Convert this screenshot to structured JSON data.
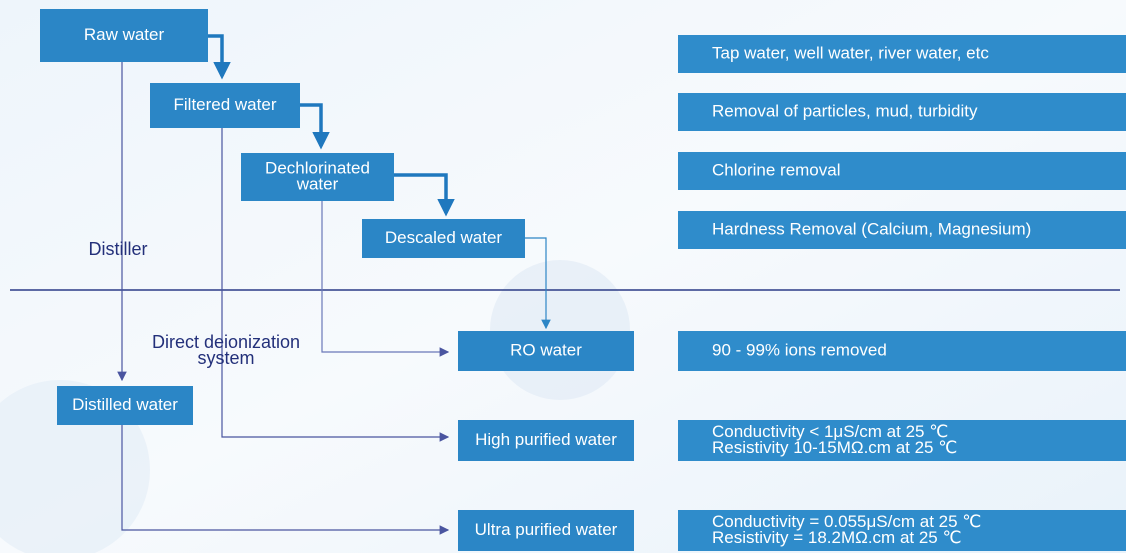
{
  "nodes": [
    {
      "label": [
        "Raw water"
      ]
    },
    {
      "label": [
        "Filtered water"
      ]
    },
    {
      "label": [
        "Dechlorinated",
        "water"
      ]
    },
    {
      "label": [
        "Descaled water"
      ]
    },
    {
      "label": [
        "RO water"
      ]
    },
    {
      "label": [
        "Distilled water"
      ]
    },
    {
      "label": [
        "High purified water"
      ]
    },
    {
      "label": [
        "Ultra purified water"
      ]
    }
  ],
  "descriptions": [
    [
      "Tap water, well water, river water, etc"
    ],
    [
      "Removal of particles, mud, turbidity"
    ],
    [
      "Chlorine removal"
    ],
    [
      "Hardness Removal (Calcium, Magnesium)"
    ],
    [
      "90 - 99% ions removed"
    ],
    [
      "Conductivity < 1μS/cm at 25 ℃",
      "Resistivity 10-15MΩ.cm at 25 ℃"
    ],
    [
      "Conductivity = 0.055μS/cm at 25 ℃",
      "Resistivity = 18.2MΩ.cm at 25 ℃"
    ]
  ],
  "labels": {
    "distiller": [
      "Distiller"
    ],
    "deionization": [
      "Direct deionization",
      "system"
    ]
  }
}
